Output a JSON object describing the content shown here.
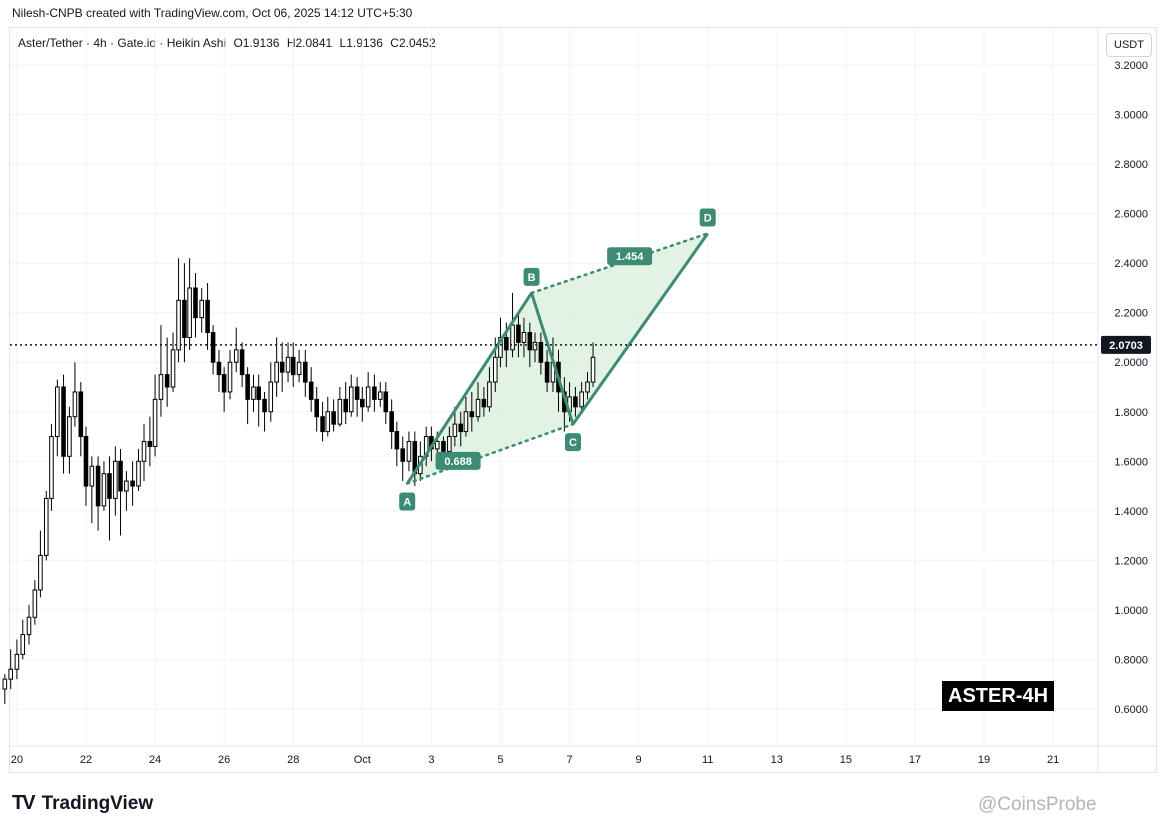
{
  "header": {
    "credit": "Nilesh-CNPB created with TradingView.com, Oct 06, 2025 14:12 UTC+5:30",
    "symbol": "Aster/Tether · 4h · Gate.io · Heikin Ashi",
    "ohlc": {
      "o": "O1.9136",
      "h": "H2.0841",
      "l": "L1.9136",
      "c": "C2.0452"
    }
  },
  "currency": "USDT",
  "footer": {
    "brand": "TradingView",
    "watermark": "@CoinsProbe"
  },
  "ticker_tag": "ASTER-4H",
  "colors": {
    "candle": "#000000",
    "pattern": "#3d8b74",
    "fill": "#d9efd9",
    "grid": "#f0f3fa"
  },
  "chart_data": {
    "type": "candlestick",
    "style": "Heikin Ashi",
    "interval": "4h",
    "ylim": [
      0.45,
      3.35
    ],
    "y_ticks": [
      "3.2000",
      "3.0000",
      "2.8000",
      "2.6000",
      "2.4000",
      "2.2000",
      "2.0000",
      "1.8000",
      "1.6000",
      "1.4000",
      "1.2000",
      "1.0000",
      "0.8000",
      "0.6000"
    ],
    "x_ticks": [
      "20",
      "22",
      "24",
      "26",
      "28",
      "Oct",
      "3",
      "5",
      "7",
      "9",
      "11",
      "13",
      "15",
      "17",
      "19",
      "21"
    ],
    "x_range": [
      -0.2,
      31.3
    ],
    "current_price": {
      "label": "2.0703",
      "value": 2.0703
    },
    "candles": [
      [
        -0.35,
        0.68,
        0.72,
        0.62,
        0.74
      ],
      [
        -0.18,
        0.72,
        0.76,
        0.68,
        0.84
      ],
      [
        0.0,
        0.76,
        0.82,
        0.72,
        0.88
      ],
      [
        0.17,
        0.82,
        0.9,
        0.8,
        0.96
      ],
      [
        0.35,
        0.9,
        0.97,
        0.86,
        1.02
      ],
      [
        0.52,
        0.97,
        1.08,
        0.94,
        1.12
      ],
      [
        0.68,
        1.08,
        1.22,
        1.05,
        1.32
      ],
      [
        0.85,
        1.22,
        1.45,
        1.2,
        1.48
      ],
      [
        1.0,
        1.45,
        1.7,
        1.4,
        1.75
      ],
      [
        1.17,
        1.7,
        1.9,
        1.62,
        1.93
      ],
      [
        1.35,
        1.9,
        1.62,
        1.55,
        1.95
      ],
      [
        1.52,
        1.62,
        1.78,
        1.55,
        1.82
      ],
      [
        1.68,
        1.78,
        1.88,
        1.74,
        2.0
      ],
      [
        1.85,
        1.88,
        1.7,
        1.62,
        1.92
      ],
      [
        2.0,
        1.7,
        1.5,
        1.42,
        1.74
      ],
      [
        2.17,
        1.5,
        1.58,
        1.35,
        1.62
      ],
      [
        2.35,
        1.58,
        1.42,
        1.32,
        1.62
      ],
      [
        2.52,
        1.42,
        1.55,
        1.4,
        1.6
      ],
      [
        2.68,
        1.55,
        1.45,
        1.28,
        1.62
      ],
      [
        2.85,
        1.45,
        1.6,
        1.38,
        1.66
      ],
      [
        3.0,
        1.6,
        1.48,
        1.3,
        1.65
      ],
      [
        3.17,
        1.48,
        1.52,
        1.4,
        1.56
      ],
      [
        3.35,
        1.52,
        1.5,
        1.42,
        1.6
      ],
      [
        3.52,
        1.5,
        1.6,
        1.48,
        1.65
      ],
      [
        3.68,
        1.6,
        1.68,
        1.52,
        1.75
      ],
      [
        3.85,
        1.68,
        1.66,
        1.58,
        1.78
      ],
      [
        4.0,
        1.66,
        1.85,
        1.62,
        1.95
      ],
      [
        4.17,
        1.85,
        1.95,
        1.78,
        2.15
      ],
      [
        4.35,
        1.95,
        1.9,
        1.82,
        2.1
      ],
      [
        4.52,
        1.9,
        2.05,
        1.88,
        2.12
      ],
      [
        4.68,
        2.05,
        2.25,
        2.0,
        2.42
      ],
      [
        4.85,
        2.25,
        2.1,
        2.0,
        2.4
      ],
      [
        5.0,
        2.1,
        2.3,
        2.05,
        2.42
      ],
      [
        5.17,
        2.3,
        2.18,
        2.1,
        2.36
      ],
      [
        5.35,
        2.18,
        2.25,
        2.12,
        2.3
      ],
      [
        5.52,
        2.25,
        2.12,
        2.05,
        2.32
      ],
      [
        5.68,
        2.12,
        2.0,
        1.95,
        2.15
      ],
      [
        5.85,
        2.0,
        1.95,
        1.88,
        2.05
      ],
      [
        6.0,
        1.95,
        1.88,
        1.8,
        1.98
      ],
      [
        6.17,
        1.88,
        2.0,
        1.85,
        2.05
      ],
      [
        6.35,
        2.0,
        2.05,
        1.96,
        2.14
      ],
      [
        6.52,
        2.05,
        1.95,
        1.9,
        2.08
      ],
      [
        6.68,
        1.95,
        1.85,
        1.75,
        1.98
      ],
      [
        6.85,
        1.85,
        1.9,
        1.8,
        1.95
      ],
      [
        7.0,
        1.9,
        1.85,
        1.74,
        1.95
      ],
      [
        7.17,
        1.85,
        1.8,
        1.72,
        1.88
      ],
      [
        7.35,
        1.8,
        1.92,
        1.76,
        2.0
      ],
      [
        7.52,
        1.92,
        2.0,
        1.86,
        2.1
      ],
      [
        7.68,
        2.0,
        1.96,
        1.88,
        2.08
      ],
      [
        7.85,
        1.96,
        2.02,
        1.92,
        2.08
      ],
      [
        8.0,
        2.02,
        1.95,
        1.9,
        2.08
      ],
      [
        8.17,
        1.95,
        2.0,
        1.92,
        2.05
      ],
      [
        8.35,
        2.0,
        1.92,
        1.86,
        2.05
      ],
      [
        8.52,
        1.92,
        1.85,
        1.8,
        1.98
      ],
      [
        8.68,
        1.85,
        1.78,
        1.72,
        1.9
      ],
      [
        8.85,
        1.78,
        1.72,
        1.68,
        1.84
      ],
      [
        9.0,
        1.72,
        1.8,
        1.7,
        1.86
      ],
      [
        9.17,
        1.8,
        1.75,
        1.72,
        1.85
      ],
      [
        9.35,
        1.75,
        1.85,
        1.74,
        1.9
      ],
      [
        9.52,
        1.85,
        1.8,
        1.75,
        1.92
      ],
      [
        9.68,
        1.8,
        1.9,
        1.78,
        1.95
      ],
      [
        9.85,
        1.9,
        1.85,
        1.78,
        1.94
      ],
      [
        10.0,
        1.85,
        1.82,
        1.76,
        1.9
      ],
      [
        10.17,
        1.82,
        1.9,
        1.8,
        1.96
      ],
      [
        10.35,
        1.9,
        1.85,
        1.8,
        1.95
      ],
      [
        10.52,
        1.85,
        1.88,
        1.82,
        1.92
      ],
      [
        10.68,
        1.88,
        1.8,
        1.75,
        1.92
      ],
      [
        10.85,
        1.8,
        1.72,
        1.65,
        1.85
      ],
      [
        11.0,
        1.72,
        1.65,
        1.58,
        1.76
      ],
      [
        11.17,
        1.65,
        1.6,
        1.52,
        1.7
      ],
      [
        11.35,
        1.6,
        1.68,
        1.56,
        1.72
      ],
      [
        11.52,
        1.68,
        1.55,
        1.5,
        1.72
      ],
      [
        11.68,
        1.55,
        1.62,
        1.52,
        1.68
      ],
      [
        11.85,
        1.62,
        1.7,
        1.58,
        1.74
      ],
      [
        12.0,
        1.7,
        1.65,
        1.6,
        1.74
      ],
      [
        12.17,
        1.65,
        1.68,
        1.6,
        1.72
      ],
      [
        12.35,
        1.68,
        1.64,
        1.58,
        1.7
      ],
      [
        12.52,
        1.64,
        1.7,
        1.62,
        1.74
      ],
      [
        12.68,
        1.7,
        1.75,
        1.66,
        1.82
      ],
      [
        12.85,
        1.75,
        1.72,
        1.66,
        1.8
      ],
      [
        13.0,
        1.72,
        1.8,
        1.7,
        1.86
      ],
      [
        13.17,
        1.8,
        1.78,
        1.72,
        1.88
      ],
      [
        13.35,
        1.78,
        1.85,
        1.76,
        1.92
      ],
      [
        13.52,
        1.85,
        1.82,
        1.78,
        1.9
      ],
      [
        13.68,
        1.82,
        1.92,
        1.8,
        1.98
      ],
      [
        13.85,
        1.92,
        2.02,
        1.88,
        2.1
      ],
      [
        14.0,
        2.02,
        2.1,
        1.98,
        2.18
      ],
      [
        14.17,
        2.1,
        2.05,
        1.98,
        2.16
      ],
      [
        14.35,
        2.05,
        2.15,
        2.02,
        2.28
      ],
      [
        14.52,
        2.15,
        2.08,
        2.02,
        2.2
      ],
      [
        14.68,
        2.08,
        2.12,
        2.02,
        2.18
      ],
      [
        14.85,
        2.12,
        2.05,
        1.98,
        2.16
      ],
      [
        15.0,
        2.05,
        2.08,
        2.0,
        2.12
      ],
      [
        15.17,
        2.08,
        2.0,
        1.95,
        2.12
      ],
      [
        15.35,
        2.0,
        1.92,
        1.88,
        2.05
      ],
      [
        15.52,
        1.92,
        2.0,
        1.88,
        2.1
      ],
      [
        15.68,
        2.0,
        1.88,
        1.8,
        2.05
      ],
      [
        15.85,
        1.88,
        1.8,
        1.72,
        1.94
      ],
      [
        16.0,
        1.8,
        1.86,
        1.76,
        1.92
      ],
      [
        16.17,
        1.86,
        1.82,
        1.78,
        1.9
      ],
      [
        16.35,
        1.82,
        1.88,
        1.8,
        1.92
      ],
      [
        16.52,
        1.88,
        1.92,
        1.85,
        1.96
      ],
      [
        16.68,
        1.92,
        2.02,
        1.9,
        2.08
      ]
    ],
    "harmonic_pattern": {
      "points": [
        {
          "label": "A",
          "x": 11.3,
          "y": 1.51
        },
        {
          "label": "B",
          "x": 14.9,
          "y": 2.28
        },
        {
          "label": "C",
          "x": 16.1,
          "y": 1.75
        },
        {
          "label": "D",
          "x": 20.0,
          "y": 2.52
        }
      ],
      "ratios": [
        "0.688",
        "1.454"
      ]
    }
  }
}
